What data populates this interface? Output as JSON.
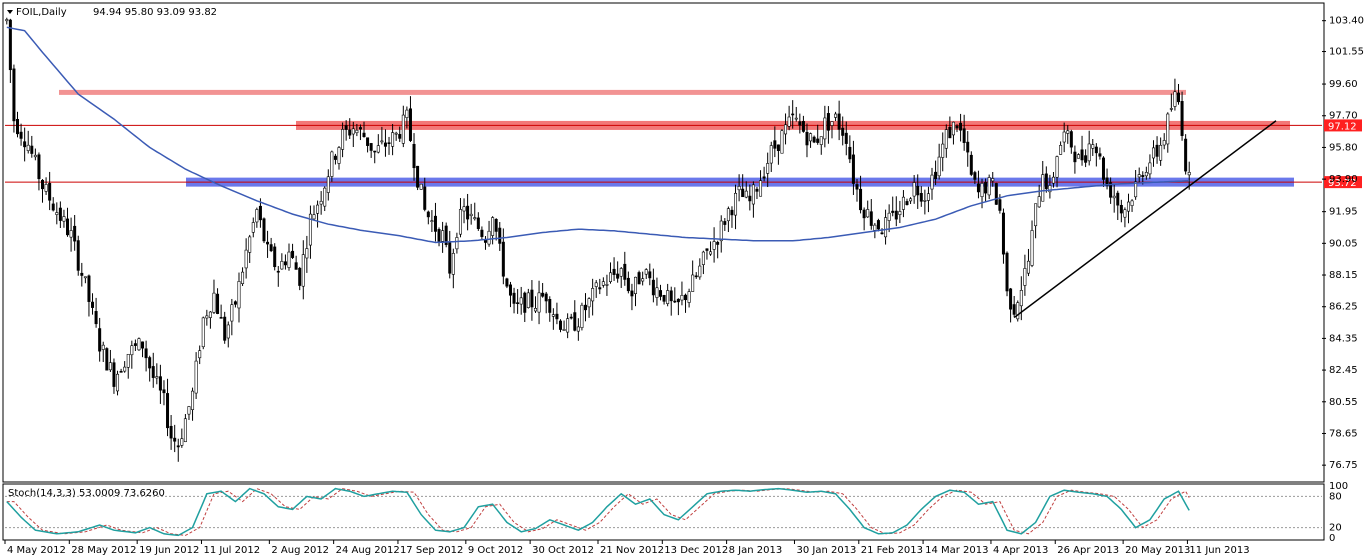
{
  "chart_data": {
    "type": "candlestick",
    "header": {
      "symbol": "FOIL,Daily",
      "ohlc": "94.94 95.80 93.09 93.82"
    },
    "y_ticks": [
      "103.40",
      "101.55",
      "99.60",
      "97.70",
      "95.80",
      "93.90",
      "91.95",
      "90.05",
      "88.15",
      "86.25",
      "84.35",
      "82.45",
      "80.55",
      "78.65",
      "76.75"
    ],
    "ylim": [
      75.8,
      104.4
    ],
    "x_labels": [
      "4 May 2012",
      "28 May 2012",
      "19 Jun 2012",
      "11 Jul 2012",
      "2 Aug 2012",
      "24 Aug 2012",
      "17 Sep 2012",
      "9 Oct 2012",
      "30 Oct 2012",
      "21 Nov 2012",
      "13 Dec 2012",
      "8 Jan 2013",
      "30 Jan 2013",
      "21 Feb 2013",
      "14 Mar 2013",
      "4 Apr 2013",
      "26 Apr 2013",
      "20 May 2013",
      "11 Jun 2013"
    ],
    "price_key": [
      [
        0,
        103.4
      ],
      [
        2,
        97.5
      ],
      [
        6,
        96.0
      ],
      [
        10,
        93.5
      ],
      [
        14,
        92.0
      ],
      [
        18,
        90.5
      ],
      [
        22,
        87.5
      ],
      [
        26,
        84.0
      ],
      [
        30,
        82.0
      ],
      [
        34,
        83.5
      ],
      [
        38,
        84.0
      ],
      [
        41,
        82.0
      ],
      [
        44,
        80.5
      ],
      [
        46,
        78.5
      ],
      [
        48,
        78.0
      ],
      [
        50,
        79.5
      ],
      [
        52,
        81.0
      ],
      [
        55,
        85.5
      ],
      [
        58,
        87.0
      ],
      [
        61,
        84.5
      ],
      [
        64,
        86.5
      ],
      [
        67,
        89.5
      ],
      [
        70,
        92.0
      ],
      [
        73,
        89.5
      ],
      [
        76,
        88.5
      ],
      [
        79,
        89.5
      ],
      [
        82,
        88.0
      ],
      [
        85,
        91.5
      ],
      [
        88,
        93.0
      ],
      [
        91,
        95.0
      ],
      [
        94,
        96.5
      ],
      [
        97,
        97.0
      ],
      [
        100,
        96.5
      ],
      [
        103,
        95.5
      ],
      [
        106,
        96.0
      ],
      [
        109,
        96.5
      ],
      [
        112,
        97.5
      ],
      [
        115,
        94.0
      ],
      [
        117,
        92.0
      ],
      [
        120,
        91.0
      ],
      [
        122,
        90.5
      ],
      [
        124,
        88.5
      ],
      [
        126,
        91.0
      ],
      [
        128,
        92.0
      ],
      [
        130,
        91.5
      ],
      [
        132,
        91.0
      ],
      [
        134,
        90.5
      ],
      [
        136,
        92.0
      ],
      [
        138,
        89.5
      ],
      [
        140,
        87.5
      ],
      [
        142,
        86.0
      ],
      [
        145,
        86.5
      ],
      [
        148,
        86.5
      ],
      [
        151,
        87.0
      ],
      [
        154,
        85.5
      ],
      [
        157,
        85.0
      ],
      [
        160,
        85.5
      ],
      [
        163,
        86.5
      ],
      [
        166,
        87.5
      ],
      [
        169,
        88.0
      ],
      [
        172,
        88.5
      ],
      [
        175,
        87.0
      ],
      [
        178,
        88.5
      ],
      [
        181,
        87.5
      ],
      [
        184,
        87.0
      ],
      [
        187,
        86.0
      ],
      [
        190,
        87.0
      ],
      [
        193,
        88.0
      ],
      [
        196,
        89.5
      ],
      [
        199,
        90.5
      ],
      [
        202,
        92.0
      ],
      [
        205,
        93.0
      ],
      [
        208,
        92.5
      ],
      [
        211,
        94.0
      ],
      [
        214,
        95.5
      ],
      [
        217,
        96.5
      ],
      [
        220,
        97.5
      ],
      [
        223,
        96.8
      ],
      [
        226,
        96.0
      ],
      [
        229,
        97.2
      ],
      [
        232,
        97.5
      ],
      [
        235,
        96.5
      ],
      [
        237,
        94.0
      ],
      [
        239,
        92.5
      ],
      [
        242,
        91.5
      ],
      [
        245,
        91.0
      ],
      [
        248,
        91.5
      ],
      [
        251,
        92.5
      ],
      [
        254,
        93.5
      ],
      [
        257,
        93.0
      ],
      [
        260,
        94.5
      ],
      [
        263,
        96.5
      ],
      [
        266,
        97.3
      ],
      [
        268,
        96.0
      ],
      [
        270,
        94.0
      ],
      [
        272,
        93.0
      ],
      [
        274,
        93.5
      ],
      [
        276,
        93.5
      ],
      [
        278,
        92.0
      ],
      [
        280,
        87.0
      ],
      [
        282,
        86.2
      ],
      [
        284,
        87.5
      ],
      [
        286,
        89.0
      ],
      [
        288,
        92.0
      ],
      [
        290,
        94.5
      ],
      [
        292,
        93.0
      ],
      [
        294,
        95.5
      ],
      [
        296,
        96.5
      ],
      [
        298,
        96.0
      ],
      [
        300,
        95.0
      ],
      [
        302,
        95.5
      ],
      [
        304,
        96.5
      ],
      [
        306,
        95.0
      ],
      [
        308,
        93.5
      ],
      [
        310,
        93.0
      ],
      [
        312,
        92.0
      ],
      [
        314,
        92.5
      ],
      [
        316,
        93.5
      ],
      [
        318,
        94.5
      ],
      [
        320,
        95.0
      ],
      [
        322,
        95.5
      ],
      [
        324,
        96.5
      ],
      [
        326,
        98.2
      ],
      [
        327,
        98.8
      ],
      [
        328,
        98.5
      ],
      [
        329,
        97.0
      ],
      [
        330,
        94.8
      ],
      [
        331,
        93.8
      ]
    ],
    "ma_key": [
      [
        0,
        103.0
      ],
      [
        5,
        102.8
      ],
      [
        10,
        101.5
      ],
      [
        20,
        99.0
      ],
      [
        30,
        97.5
      ],
      [
        40,
        95.8
      ],
      [
        50,
        94.5
      ],
      [
        60,
        93.5
      ],
      [
        70,
        92.6
      ],
      [
        80,
        91.8
      ],
      [
        90,
        91.2
      ],
      [
        100,
        90.8
      ],
      [
        110,
        90.5
      ],
      [
        115,
        90.3
      ],
      [
        120,
        90.1
      ],
      [
        130,
        90.2
      ],
      [
        140,
        90.4
      ],
      [
        150,
        90.7
      ],
      [
        160,
        90.9
      ],
      [
        170,
        90.8
      ],
      [
        180,
        90.6
      ],
      [
        190,
        90.4
      ],
      [
        200,
        90.3
      ],
      [
        210,
        90.2
      ],
      [
        220,
        90.2
      ],
      [
        230,
        90.4
      ],
      [
        240,
        90.7
      ],
      [
        250,
        91.0
      ],
      [
        260,
        91.5
      ],
      [
        270,
        92.3
      ],
      [
        280,
        92.9
      ],
      [
        290,
        93.2
      ],
      [
        300,
        93.4
      ],
      [
        310,
        93.6
      ],
      [
        320,
        93.7
      ],
      [
        331,
        93.8
      ]
    ],
    "stoch": {
      "label": "Stoch(14,3,3) 53.0009 73.6260",
      "levels_label": [
        "100",
        "80",
        "20",
        "0"
      ],
      "key": [
        [
          0,
          70
        ],
        [
          4,
          40
        ],
        [
          8,
          15
        ],
        [
          14,
          8
        ],
        [
          20,
          12
        ],
        [
          26,
          25
        ],
        [
          30,
          15
        ],
        [
          36,
          10
        ],
        [
          40,
          20
        ],
        [
          44,
          8
        ],
        [
          48,
          5
        ],
        [
          52,
          20
        ],
        [
          56,
          85
        ],
        [
          60,
          90
        ],
        [
          64,
          70
        ],
        [
          68,
          95
        ],
        [
          72,
          85
        ],
        [
          76,
          60
        ],
        [
          80,
          55
        ],
        [
          84,
          80
        ],
        [
          88,
          75
        ],
        [
          92,
          95
        ],
        [
          96,
          90
        ],
        [
          100,
          80
        ],
        [
          104,
          85
        ],
        [
          108,
          90
        ],
        [
          112,
          88
        ],
        [
          116,
          45
        ],
        [
          120,
          15
        ],
        [
          124,
          12
        ],
        [
          128,
          20
        ],
        [
          132,
          60
        ],
        [
          136,
          65
        ],
        [
          140,
          30
        ],
        [
          144,
          12
        ],
        [
          148,
          18
        ],
        [
          152,
          35
        ],
        [
          156,
          25
        ],
        [
          160,
          15
        ],
        [
          164,
          30
        ],
        [
          168,
          60
        ],
        [
          172,
          85
        ],
        [
          176,
          65
        ],
        [
          180,
          75
        ],
        [
          184,
          45
        ],
        [
          188,
          35
        ],
        [
          192,
          60
        ],
        [
          196,
          85
        ],
        [
          200,
          90
        ],
        [
          204,
          92
        ],
        [
          208,
          90
        ],
        [
          212,
          93
        ],
        [
          216,
          95
        ],
        [
          220,
          92
        ],
        [
          224,
          88
        ],
        [
          228,
          90
        ],
        [
          232,
          85
        ],
        [
          236,
          55
        ],
        [
          240,
          20
        ],
        [
          244,
          8
        ],
        [
          248,
          10
        ],
        [
          252,
          25
        ],
        [
          256,
          55
        ],
        [
          260,
          80
        ],
        [
          264,
          92
        ],
        [
          268,
          88
        ],
        [
          272,
          65
        ],
        [
          276,
          70
        ],
        [
          280,
          15
        ],
        [
          284,
          8
        ],
        [
          288,
          30
        ],
        [
          292,
          80
        ],
        [
          296,
          92
        ],
        [
          300,
          88
        ],
        [
          304,
          85
        ],
        [
          308,
          80
        ],
        [
          312,
          55
        ],
        [
          316,
          20
        ],
        [
          320,
          35
        ],
        [
          324,
          75
        ],
        [
          328,
          90
        ],
        [
          331,
          53
        ]
      ]
    },
    "horizontal_levels": [
      {
        "type": "band",
        "value": 99.1,
        "color": "#f08080",
        "start": 59,
        "end": 1186
      },
      {
        "type": "band",
        "value": 97.12,
        "color": "#f06060",
        "start": 296,
        "end": 1290,
        "price_label": "97.12"
      },
      {
        "type": "line",
        "value": 97.12,
        "color": "#cc0000"
      },
      {
        "type": "band",
        "value": 93.72,
        "color": "#5060e8",
        "start": 186,
        "end": 1294,
        "price_label": "93.72"
      },
      {
        "type": "line",
        "value": 93.72,
        "color": "#cc0000"
      }
    ],
    "trendline": {
      "from": [
        "4 Apr 2013",
        85.6
      ],
      "to": [
        "after 11 Jun 2013",
        97.4
      ],
      "color": "#000000"
    },
    "colors": {
      "candle": "#000000",
      "ma": "#3b5bb5",
      "stoch_main": "#20a0a0",
      "stoch_signal": "#c04040",
      "label_red": "#ff2020",
      "label_text": "#ffffff"
    }
  }
}
